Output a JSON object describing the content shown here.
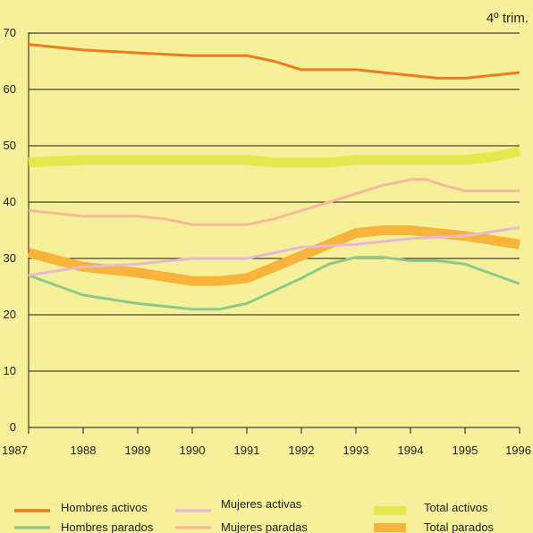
{
  "chart_data": {
    "type": "line",
    "title": "",
    "xlabel": "",
    "ylabel": "",
    "note": "4º trim.",
    "x": [
      1987,
      1988,
      1989,
      1990,
      1991,
      1992,
      1993,
      1994,
      1995,
      1996
    ],
    "x_tick_labels": [
      "1987",
      "1988",
      "1989",
      "1990",
      "1991",
      "1992",
      "1993",
      "1994",
      "1995",
      "1996"
    ],
    "y_ticks": [
      0,
      10,
      20,
      30,
      40,
      50,
      60,
      70
    ],
    "y_tick_labels": [
      "0",
      "10",
      "20",
      "30",
      "40",
      "50",
      "60",
      "70"
    ],
    "xlim": [
      1987,
      1996
    ],
    "ylim": [
      0,
      70
    ],
    "grid": "horizontal",
    "legend_position": "bottom",
    "series": [
      {
        "name": "Hombres activos",
        "color": "#f07a1e",
        "width": "thin",
        "x": [
          1987,
          1988,
          1989,
          1990,
          1991,
          1991.5,
          1992,
          1993,
          1994,
          1994.5,
          1995,
          1996
        ],
        "y": [
          68,
          67,
          66.5,
          66,
          66,
          65,
          63.5,
          63.5,
          62.5,
          62,
          62,
          63
        ]
      },
      {
        "name": "Hombres parados",
        "color": "#8fc98a",
        "width": "thin",
        "x": [
          1987,
          1988,
          1989,
          1990,
          1990.5,
          1991,
          1992,
          1992.5,
          1993,
          1993.5,
          1994,
          1994.5,
          1995,
          1996
        ],
        "y": [
          27,
          23.5,
          22,
          21,
          21,
          22,
          26.5,
          29,
          30.2,
          30.2,
          29.6,
          29.6,
          29,
          25.5
        ]
      },
      {
        "name": "Mujeres activas",
        "color": "#e6b9d6",
        "width": "thin",
        "x": [
          1987,
          1988,
          1989,
          1990,
          1991,
          1992,
          1993,
          1994,
          1995,
          1996
        ],
        "y": [
          27,
          28.5,
          29,
          30,
          30,
          32,
          32.5,
          33.5,
          34,
          35.5
        ]
      },
      {
        "name": "Mujeres paradas",
        "color": "#f6b99a",
        "width": "thin",
        "x": [
          1987,
          1988,
          1989,
          1989.5,
          1990,
          1991,
          1991.5,
          1992,
          1993,
          1993.5,
          1994,
          1994.3,
          1994.6,
          1995,
          1996
        ],
        "y": [
          38.5,
          37.5,
          37.5,
          37,
          36,
          36,
          37,
          38.5,
          41.5,
          43,
          44,
          44,
          43,
          42,
          42
        ]
      },
      {
        "name": "Total activos",
        "color": "#e2e84e",
        "width": "thick",
        "x": [
          1987,
          1988,
          1989,
          1990,
          1991,
          1991.5,
          1992,
          1992.5,
          1993,
          1994,
          1995,
          1995.5,
          1996
        ],
        "y": [
          47,
          47.5,
          47.5,
          47.5,
          47.5,
          47,
          47,
          47,
          47.5,
          47.5,
          47.5,
          48,
          49
        ]
      },
      {
        "name": "Total parados",
        "color": "#f8b43a",
        "width": "thick",
        "x": [
          1987,
          1988,
          1989,
          1990,
          1990.5,
          1991,
          1992,
          1992.5,
          1993,
          1993.5,
          1994,
          1995,
          1996
        ],
        "y": [
          31,
          28.5,
          27.5,
          26,
          26,
          26.5,
          30.5,
          32.5,
          34.5,
          35,
          35,
          34,
          32.5
        ]
      }
    ]
  }
}
